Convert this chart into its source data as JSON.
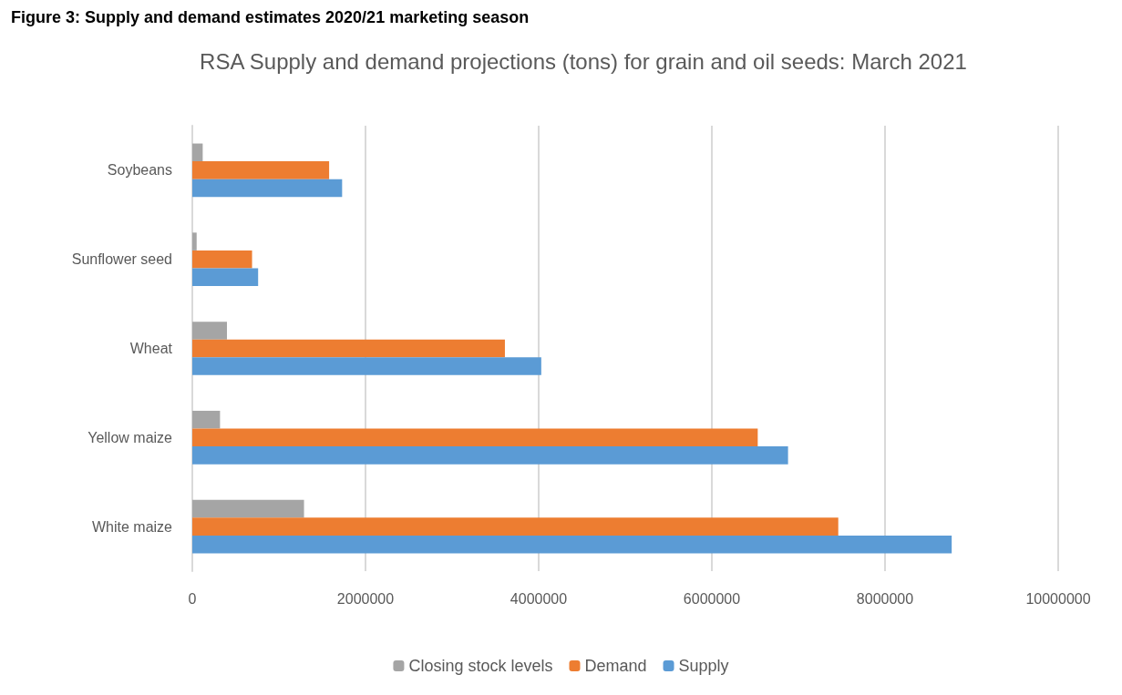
{
  "chart_data": {
    "type": "bar",
    "orientation": "horizontal",
    "title": "RSA Supply and demand projections (tons) for grain and oil seeds: March 2021",
    "annotations": [
      "Figure 3: Supply and demand estimates 2020/21 marketing season"
    ],
    "categories": [
      "Soybeans",
      "Sunflower seed",
      "Wheat",
      "Yellow maize",
      "White maize"
    ],
    "series": [
      {
        "name": "Closing stock levels",
        "color": "#a5a5a5",
        "values": [
          120000,
          50000,
          400000,
          320000,
          1290000
        ]
      },
      {
        "name": "Demand",
        "color": "#ed7d31",
        "values": [
          1580000,
          690000,
          3610000,
          6530000,
          7460000
        ]
      },
      {
        "name": "Supply",
        "color": "#5b9bd5",
        "values": [
          1730000,
          760000,
          4030000,
          6880000,
          8770000
        ]
      }
    ],
    "xlim": [
      0,
      10000000
    ],
    "xticks": [
      0,
      2000000,
      4000000,
      6000000,
      8000000,
      10000000
    ],
    "grid": "x",
    "legend": "bottom"
  }
}
